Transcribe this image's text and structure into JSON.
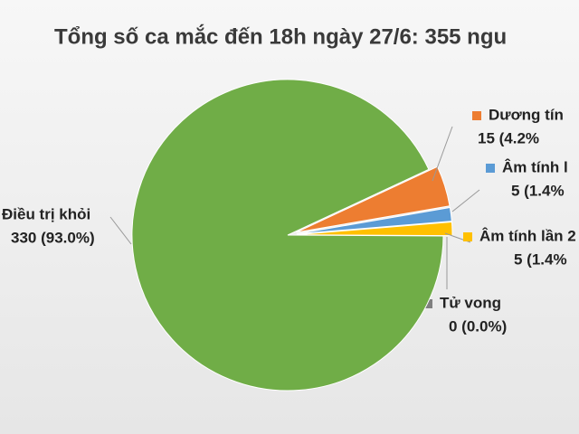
{
  "chart_data": {
    "type": "pie",
    "title": "Tổng số ca mắc đến 18h ngày 27/6: 355 ngu",
    "categories": [
      "Dương tín",
      "Âm tính l",
      "Âm tính lần 2",
      "Tử vong",
      "Điều trị khỏi"
    ],
    "values": [
      15,
      5,
      5,
      0,
      330
    ],
    "value_labels": [
      "15 (4.2%",
      "5 (1.4%",
      "5 (1.4%",
      "0 (0.0%)",
      "330 (93.0%)"
    ],
    "colors": [
      "#ed7d31",
      "#5b9bd5",
      "#ffc000",
      "#7f7f7f",
      "#70ad47"
    ]
  }
}
